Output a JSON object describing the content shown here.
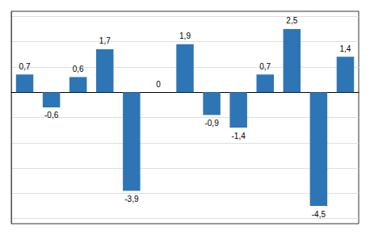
{
  "chart_data": {
    "type": "bar",
    "categories": [
      null,
      null,
      null,
      null,
      null,
      null,
      null,
      null,
      null,
      null,
      null,
      null,
      null
    ],
    "values": [
      0.7,
      -0.6,
      0.6,
      1.7,
      -3.9,
      0.0,
      1.9,
      -0.9,
      -1.4,
      0.7,
      2.5,
      -4.5,
      1.4
    ],
    "value_labels": [
      "0,7",
      "-0,6",
      "0,6",
      "1,7",
      "-3,9",
      "0",
      "1,9",
      "-0,9",
      "-1,4",
      "0,7",
      "2,5",
      "-4,5",
      "1,4"
    ],
    "color": "#2e75b6",
    "ylim": [
      -5.2,
      3.2
    ],
    "yticks": [
      -5,
      -4,
      -3,
      -2,
      -1,
      0,
      1,
      2,
      3
    ],
    "grid": true,
    "data_labels": true,
    "tick_labels": false
  }
}
